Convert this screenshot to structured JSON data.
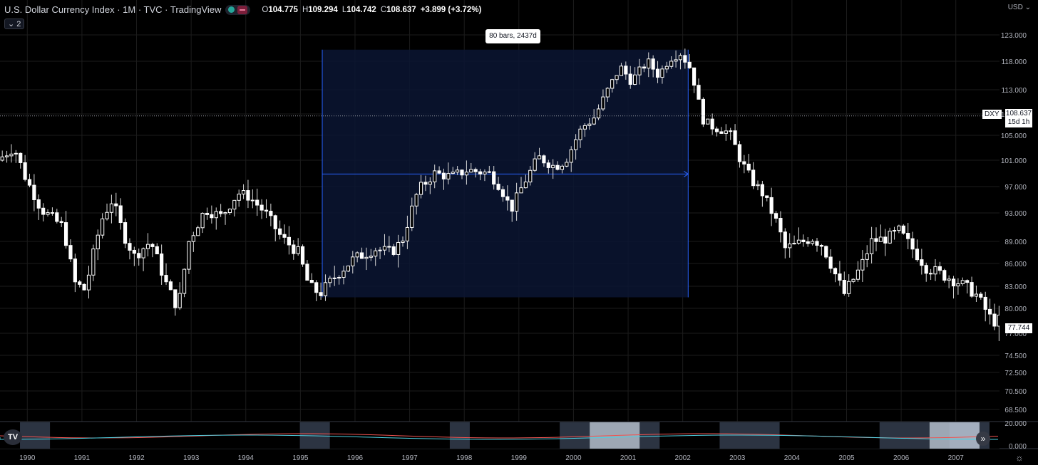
{
  "header": {
    "title": "U.S. Dollar Currency Index · 1M · TVC · TradingView",
    "ohlc": {
      "o_label": "O",
      "o": "104.775",
      "h_label": "H",
      "h": "109.294",
      "l_label": "L",
      "l": "104.742",
      "c_label": "C",
      "c": "108.637",
      "change": "+3.899 (+3.72%)"
    },
    "collapse_label": "2",
    "currency": "USD"
  },
  "measure_tooltip": "80 bars, 2437d",
  "price_tags": {
    "symbol": "DXY",
    "last_price": "108.637",
    "countdown": "15d 1h",
    "low_marker": "77.744"
  },
  "colors": {
    "background": "#000000",
    "grid": "#1c1c1c",
    "candle": "#ffffff",
    "measure_fill": "#0b1533",
    "measure_line": "#2962ff",
    "text": "#d1d4dc"
  },
  "icons": [
    "tradingview-logo-icon",
    "scroll-right-icon",
    "settings-icon"
  ],
  "chart_data": {
    "type": "candlestick",
    "y_ticks": [
      "123.000",
      "118.000",
      "113.000",
      "109.000",
      "105.000",
      "101.000",
      "97.000",
      "93.000",
      "89.000",
      "86.000",
      "83.000",
      "80.000",
      "77.000",
      "74.500",
      "72.500",
      "70.500",
      "68.500"
    ],
    "y_tick_values": [
      123,
      118,
      113,
      109,
      105,
      101,
      97,
      93,
      89,
      86,
      83,
      80,
      77,
      74.5,
      72.5,
      70.5,
      68.5
    ],
    "x_ticks": [
      "1990",
      "1991",
      "1992",
      "1993",
      "1994",
      "1995",
      "1996",
      "1997",
      "1998",
      "1999",
      "2000",
      "2001",
      "2002",
      "2003",
      "2004",
      "2005",
      "2006",
      "2007"
    ],
    "x_start_year": 1989.5,
    "x_end_year": 2007.8,
    "last_price": 108.637,
    "low_marker": 77.744,
    "measure": {
      "x_start": 1995.4,
      "x_end": 2002.1,
      "y_top": 120.2,
      "y_bottom": 81.5,
      "mid": 98.9
    },
    "anchors": [
      [
        1989.5,
        101.0
      ],
      [
        1989.8,
        103.0
      ],
      [
        1990.0,
        98.5
      ],
      [
        1990.3,
        93.5
      ],
      [
        1990.7,
        91.0
      ],
      [
        1990.9,
        83.5
      ],
      [
        1991.1,
        82.5
      ],
      [
        1991.4,
        92.0
      ],
      [
        1991.6,
        95.0
      ],
      [
        1991.8,
        90.0
      ],
      [
        1992.0,
        87.0
      ],
      [
        1992.3,
        89.0
      ],
      [
        1992.6,
        83.0
      ],
      [
        1992.8,
        80.0
      ],
      [
        1993.0,
        89.0
      ],
      [
        1993.3,
        93.5
      ],
      [
        1993.6,
        92.5
      ],
      [
        1993.9,
        96.0
      ],
      [
        1994.1,
        95.5
      ],
      [
        1994.4,
        93.0
      ],
      [
        1994.7,
        89.5
      ],
      [
        1995.0,
        87.5
      ],
      [
        1995.2,
        83.0
      ],
      [
        1995.4,
        82.0
      ],
      [
        1995.7,
        84.5
      ],
      [
        1996.0,
        86.5
      ],
      [
        1996.4,
        88.0
      ],
      [
        1996.7,
        87.5
      ],
      [
        1996.9,
        89.0
      ],
      [
        1997.2,
        96.5
      ],
      [
        1997.5,
        99.0
      ],
      [
        1997.8,
        98.5
      ],
      [
        1998.1,
        99.5
      ],
      [
        1998.5,
        99.0
      ],
      [
        1998.7,
        97.0
      ],
      [
        1998.9,
        93.5
      ],
      [
        1999.1,
        97.0
      ],
      [
        1999.4,
        101.5
      ],
      [
        1999.7,
        100.0
      ],
      [
        1999.9,
        101.0
      ],
      [
        2000.2,
        106.5
      ],
      [
        2000.4,
        108.0
      ],
      [
        2000.7,
        113.5
      ],
      [
        2000.9,
        117.0
      ],
      [
        2001.1,
        114.5
      ],
      [
        2001.4,
        118.0
      ],
      [
        2001.6,
        115.5
      ],
      [
        2001.8,
        118.5
      ],
      [
        2002.0,
        119.5
      ],
      [
        2002.2,
        116.5
      ],
      [
        2002.4,
        108.0
      ],
      [
        2002.6,
        106.5
      ],
      [
        2002.9,
        105.5
      ],
      [
        2003.1,
        101.0
      ],
      [
        2003.3,
        98.0
      ],
      [
        2003.5,
        96.0
      ],
      [
        2003.8,
        91.0
      ],
      [
        2003.9,
        88.0
      ],
      [
        2004.1,
        88.5
      ],
      [
        2004.4,
        89.5
      ],
      [
        2004.6,
        88.5
      ],
      [
        2004.9,
        83.5
      ],
      [
        2005.0,
        82.0
      ],
      [
        2005.3,
        85.5
      ],
      [
        2005.5,
        89.0
      ],
      [
        2005.8,
        89.5
      ],
      [
        2006.0,
        90.5
      ],
      [
        2006.3,
        87.5
      ],
      [
        2006.5,
        85.5
      ],
      [
        2006.8,
        84.5
      ],
      [
        2007.1,
        83.5
      ],
      [
        2007.4,
        82.0
      ],
      [
        2007.7,
        78.5
      ]
    ]
  }
}
